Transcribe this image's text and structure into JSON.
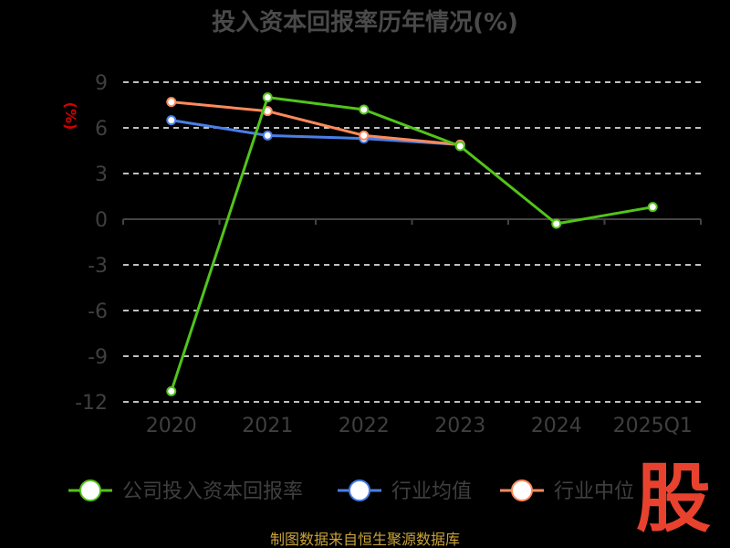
{
  "chart_data": {
    "type": "line",
    "title": "投入资本回报率历年情况(%)",
    "ylabel": "(%)",
    "categories": [
      "2020",
      "2021",
      "2022",
      "2023",
      "2024",
      "2025Q1"
    ],
    "yticks": [
      9,
      6,
      3,
      0,
      -3,
      -6,
      -9,
      -12
    ],
    "ytick_labels": [
      "9",
      "6",
      "3",
      "0",
      "-3",
      "-6",
      "-9",
      "-12"
    ],
    "ylim": [
      -12,
      9
    ],
    "grid": true,
    "legend_position": "bottom",
    "series": [
      {
        "name": "公司投入资本回报率",
        "color": "#52c41a",
        "values": [
          -11.3,
          8.0,
          7.2,
          4.8,
          -0.3,
          0.8
        ]
      },
      {
        "name": "行业均值",
        "color": "#4a7fe8",
        "values": [
          6.5,
          5.5,
          5.3,
          4.9,
          null,
          null
        ]
      },
      {
        "name": "行业中位",
        "color": "#ff8a5c",
        "values": [
          7.7,
          7.1,
          5.5,
          4.9,
          null,
          null
        ]
      }
    ]
  },
  "source_text": "制图数据来自恒生聚源数据库",
  "logo_text": "股"
}
